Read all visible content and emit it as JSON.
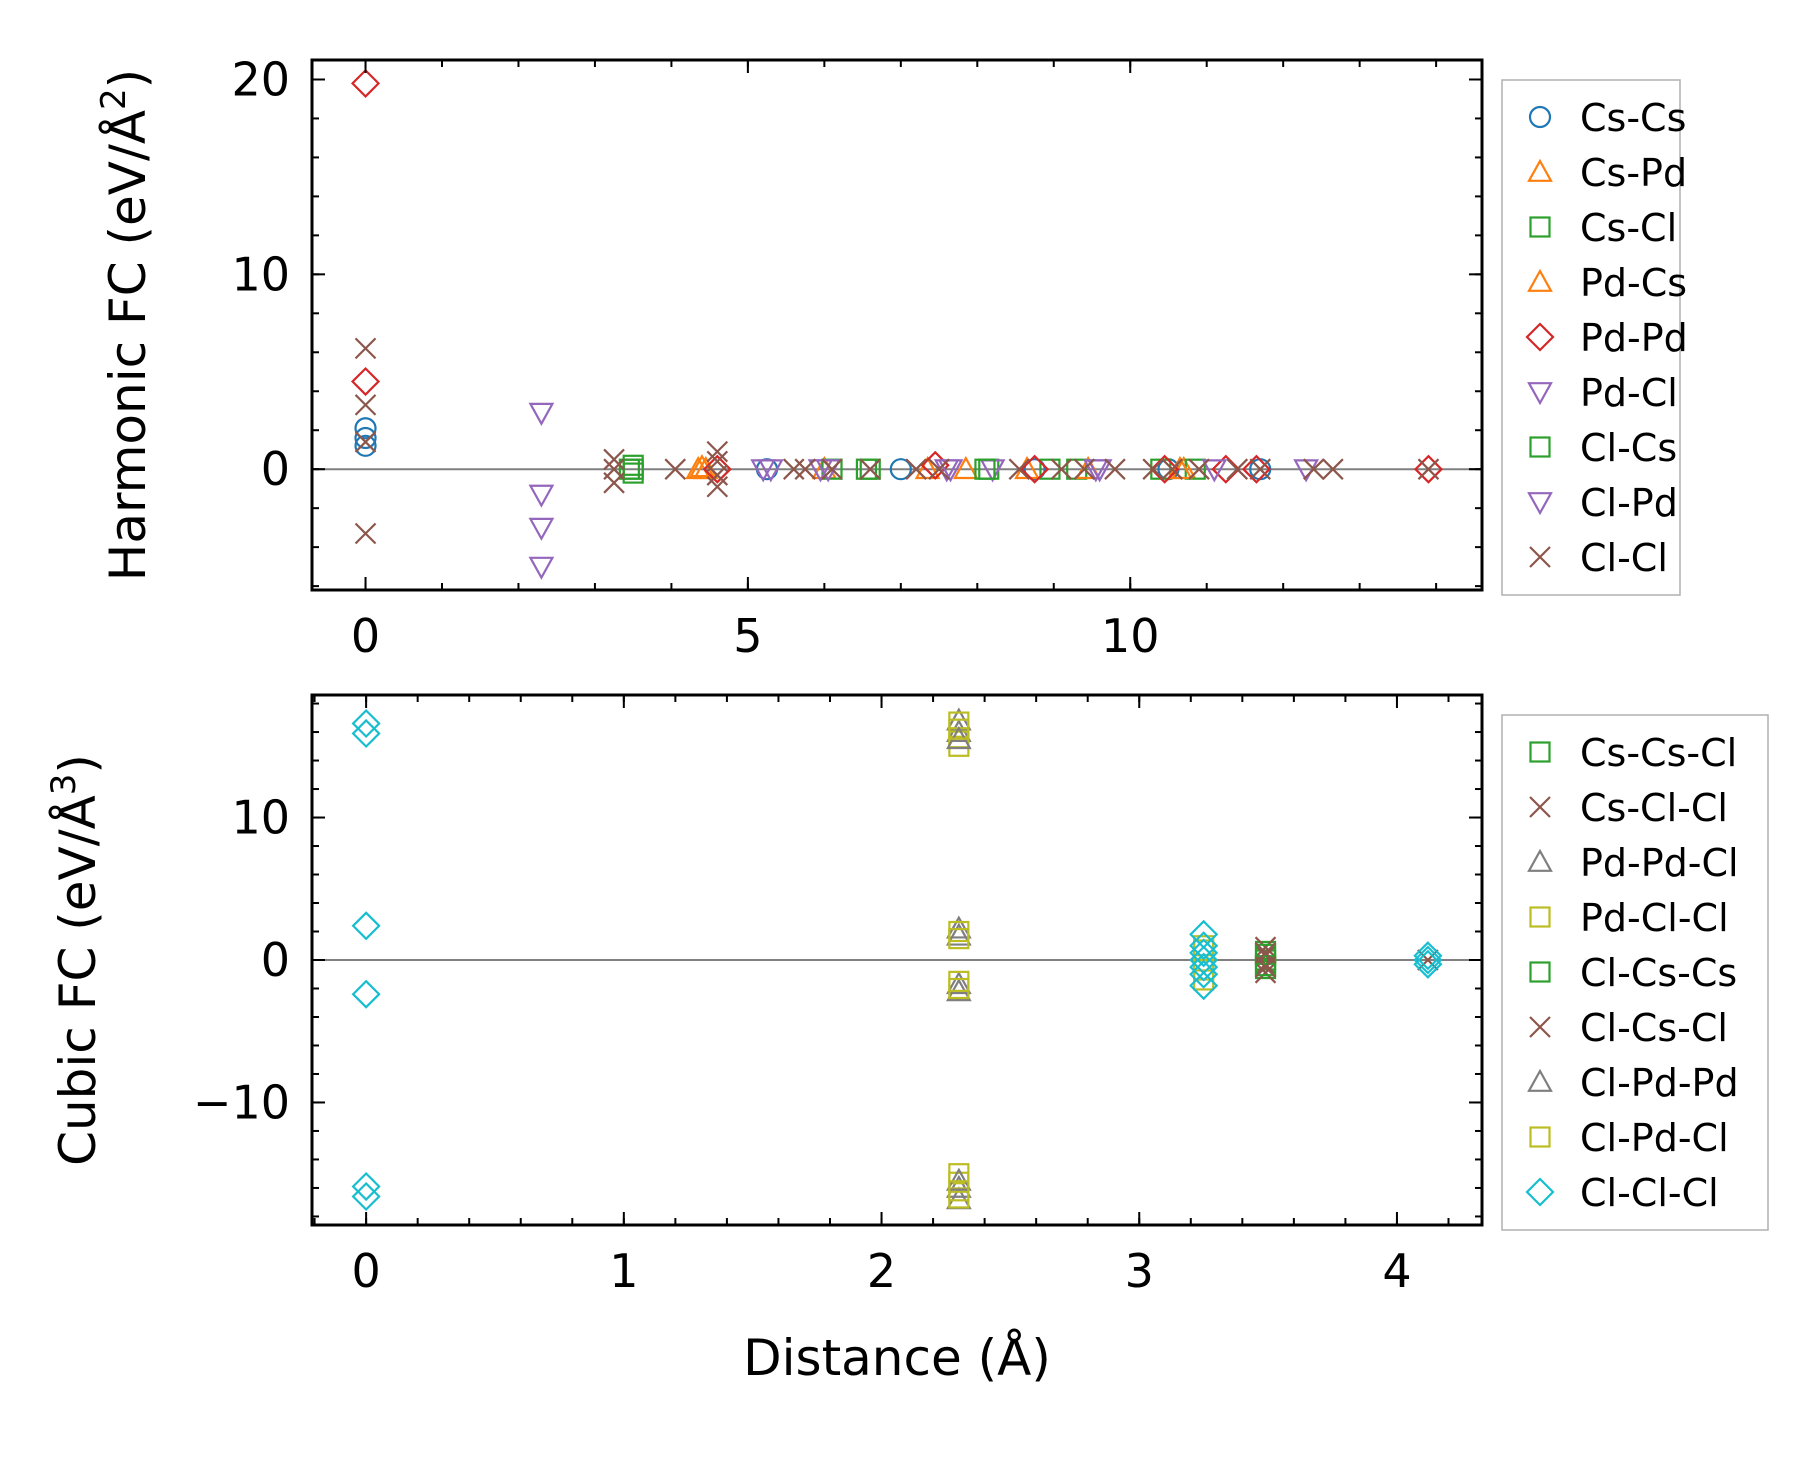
{
  "chart_data": [
    {
      "type": "scatter",
      "ylabel_main": "Harmonic FC (eV/Å",
      "ylabel_sup": "2",
      "ylabel_close": ")",
      "xlabel": "",
      "xlim": [
        -0.7,
        14.6
      ],
      "ylim": [
        -6.2,
        21.0
      ],
      "xticks": [
        0,
        5,
        10
      ],
      "xtick_labels": [
        "0",
        "5",
        "10"
      ],
      "yticks": [
        0,
        10,
        20
      ],
      "ytick_labels": [
        "0",
        "10",
        "20"
      ],
      "xminor_step": 1,
      "yminor_step": 2,
      "zero_line": true,
      "legend_loc": "right",
      "series": [
        {
          "name": "Cs-Cs",
          "marker": "circle",
          "color": "#1f77b4",
          "points": [
            [
              0,
              2.1
            ],
            [
              0,
              1.6
            ],
            [
              0,
              1.2
            ],
            [
              5.25,
              0
            ],
            [
              7.0,
              0
            ],
            [
              8.75,
              0
            ],
            [
              10.5,
              0
            ],
            [
              11.7,
              0
            ]
          ]
        },
        {
          "name": "Cs-Pd",
          "marker": "triangle-up",
          "color": "#ff7f0e",
          "points": [
            [
              4.35,
              0
            ],
            [
              4.45,
              0
            ],
            [
              6.0,
              0
            ],
            [
              7.85,
              0
            ],
            [
              8.65,
              0
            ],
            [
              10.7,
              0
            ]
          ]
        },
        {
          "name": "Cs-Cl",
          "marker": "square",
          "color": "#2ca02c",
          "points": [
            [
              3.5,
              0.2
            ],
            [
              3.5,
              -0.2
            ],
            [
              3.5,
              0
            ],
            [
              6.1,
              0
            ],
            [
              6.6,
              0
            ],
            [
              8.15,
              0
            ],
            [
              8.95,
              0
            ],
            [
              9.3,
              0
            ],
            [
              10.4,
              0
            ],
            [
              10.85,
              0
            ]
          ]
        },
        {
          "name": "Pd-Cs",
          "marker": "triangle-up",
          "color": "#ff7f0e",
          "points": [
            [
              4.4,
              0.1
            ],
            [
              7.35,
              0
            ],
            [
              9.45,
              0
            ],
            [
              10.65,
              0
            ]
          ]
        },
        {
          "name": "Pd-Pd",
          "marker": "diamond",
          "color": "#d62728",
          "points": [
            [
              0,
              19.8
            ],
            [
              0,
              4.5
            ],
            [
              4.6,
              0
            ],
            [
              7.45,
              0.2
            ],
            [
              8.75,
              0
            ],
            [
              10.45,
              0
            ],
            [
              11.25,
              0
            ],
            [
              11.65,
              0
            ],
            [
              13.9,
              0
            ]
          ]
        },
        {
          "name": "Pd-Cl",
          "marker": "triangle-down",
          "color": "#9467bd",
          "points": [
            [
              2.3,
              2.9
            ],
            [
              2.3,
              -1.3
            ],
            [
              2.3,
              -3.0
            ],
            [
              2.3,
              -5.0
            ],
            [
              5.2,
              0
            ],
            [
              5.95,
              0
            ],
            [
              7.6,
              0
            ],
            [
              8.2,
              0
            ],
            [
              9.55,
              0
            ],
            [
              11.1,
              0
            ]
          ]
        },
        {
          "name": "Cl-Cs",
          "marker": "square",
          "color": "#2ca02c",
          "points": [
            [
              3.45,
              0
            ],
            [
              6.55,
              0
            ],
            [
              8.1,
              0
            ]
          ]
        },
        {
          "name": "Cl-Pd",
          "marker": "triangle-down",
          "color": "#9467bd",
          "points": [
            [
              5.3,
              0
            ],
            [
              6.05,
              0
            ],
            [
              7.65,
              0
            ],
            [
              9.6,
              0
            ],
            [
              12.3,
              0
            ]
          ]
        },
        {
          "name": "Cl-Cl",
          "marker": "x",
          "color": "#8c564b",
          "points": [
            [
              0,
              6.2
            ],
            [
              0,
              3.3
            ],
            [
              0,
              1.4
            ],
            [
              0,
              -3.3
            ],
            [
              3.25,
              0.5
            ],
            [
              3.25,
              0
            ],
            [
              3.25,
              -0.7
            ],
            [
              4.05,
              0
            ],
            [
              4.6,
              0.9
            ],
            [
              4.6,
              0.4
            ],
            [
              4.6,
              -0.3
            ],
            [
              4.6,
              -0.9
            ],
            [
              5.6,
              0
            ],
            [
              5.75,
              0
            ],
            [
              6.1,
              0
            ],
            [
              6.6,
              0
            ],
            [
              7.2,
              0
            ],
            [
              7.5,
              0
            ],
            [
              8.55,
              0
            ],
            [
              9.1,
              0
            ],
            [
              9.4,
              0
            ],
            [
              9.8,
              0
            ],
            [
              10.3,
              0
            ],
            [
              10.55,
              0
            ],
            [
              10.9,
              0
            ],
            [
              11.4,
              0
            ],
            [
              11.7,
              0
            ],
            [
              12.4,
              0
            ],
            [
              12.65,
              0
            ],
            [
              13.9,
              0
            ]
          ]
        }
      ]
    },
    {
      "type": "scatter",
      "ylabel_main": "Cubic FC (eV/Å",
      "ylabel_sup": "3",
      "ylabel_close": ")",
      "xlabel": "Distance (Å)",
      "xlim": [
        -0.21,
        4.33
      ],
      "ylim": [
        -18.6,
        18.6
      ],
      "xticks": [
        0,
        1,
        2,
        3,
        4
      ],
      "xtick_labels": [
        "0",
        "1",
        "2",
        "3",
        "4"
      ],
      "yticks": [
        -10,
        0,
        10
      ],
      "ytick_labels": [
        "−10",
        "0",
        "10"
      ],
      "xminor_step": 0.2,
      "yminor_step": 2,
      "zero_line": true,
      "legend_loc": "right",
      "series": [
        {
          "name": "Cs-Cs-Cl",
          "marker": "square",
          "color": "#2ca02c",
          "points": [
            [
              3.49,
              0.6
            ],
            [
              3.49,
              0
            ],
            [
              3.49,
              -0.6
            ]
          ]
        },
        {
          "name": "Cs-Cl-Cl",
          "marker": "x",
          "color": "#8c564b",
          "points": [
            [
              3.49,
              0.9
            ],
            [
              3.49,
              0.3
            ],
            [
              3.49,
              -0.3
            ],
            [
              3.49,
              -0.9
            ],
            [
              4.12,
              0
            ]
          ]
        },
        {
          "name": "Pd-Pd-Cl",
          "marker": "triangle-up",
          "color": "#7f7f7f",
          "points": [
            [
              2.3,
              16.8
            ],
            [
              2.3,
              16.0
            ],
            [
              2.3,
              2.2
            ],
            [
              2.3,
              1.7
            ],
            [
              2.3,
              -1.7
            ],
            [
              2.3,
              -2.2
            ],
            [
              2.3,
              -16.0
            ],
            [
              2.3,
              -16.8
            ]
          ]
        },
        {
          "name": "Pd-Cl-Cl",
          "marker": "square",
          "color": "#bcbd22",
          "points": [
            [
              2.3,
              16.7
            ],
            [
              2.3,
              15.6
            ],
            [
              2.3,
              15.0
            ],
            [
              2.3,
              2.0
            ],
            [
              2.3,
              1.5
            ],
            [
              2.3,
              -1.5
            ],
            [
              2.3,
              -2.0
            ],
            [
              2.3,
              -15.0
            ],
            [
              2.3,
              -15.6
            ],
            [
              2.3,
              -16.7
            ],
            [
              3.25,
              0.7
            ],
            [
              3.25,
              -0.7
            ],
            [
              3.25,
              -1.4
            ]
          ]
        },
        {
          "name": "Cl-Cs-Cs",
          "marker": "square",
          "color": "#2ca02c",
          "points": [
            [
              3.49,
              0.4
            ],
            [
              3.49,
              -0.4
            ]
          ]
        },
        {
          "name": "Cl-Cs-Cl",
          "marker": "x",
          "color": "#8c564b",
          "points": [
            [
              3.49,
              0.5
            ],
            [
              3.49,
              -0.5
            ]
          ]
        },
        {
          "name": "Cl-Pd-Pd",
          "marker": "triangle-up",
          "color": "#7f7f7f",
          "points": [
            [
              2.3,
              15.5
            ],
            [
              2.3,
              -15.5
            ]
          ]
        },
        {
          "name": "Cl-Pd-Cl",
          "marker": "square",
          "color": "#bcbd22",
          "points": [
            [
              2.3,
              16.2
            ],
            [
              2.3,
              -16.2
            ],
            [
              3.25,
              1.0
            ]
          ]
        },
        {
          "name": "Cl-Cl-Cl",
          "marker": "diamond",
          "color": "#17becf",
          "points": [
            [
              0,
              16.6
            ],
            [
              0,
              15.9
            ],
            [
              0,
              2.4
            ],
            [
              0,
              -2.4
            ],
            [
              0,
              -15.9
            ],
            [
              0,
              -16.6
            ],
            [
              3.25,
              1.8
            ],
            [
              3.25,
              1.0
            ],
            [
              3.25,
              0.5
            ],
            [
              3.25,
              0
            ],
            [
              3.25,
              -0.5
            ],
            [
              3.25,
              -1.0
            ],
            [
              3.25,
              -1.8
            ],
            [
              4.12,
              0.3
            ],
            [
              4.12,
              0
            ],
            [
              4.12,
              -0.3
            ]
          ]
        }
      ]
    }
  ]
}
